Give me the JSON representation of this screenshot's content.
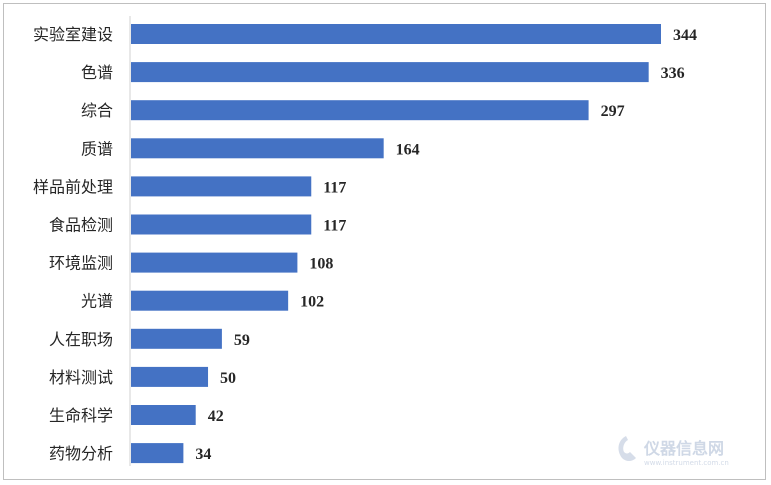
{
  "chart_data": {
    "type": "bar",
    "orientation": "horizontal",
    "categories": [
      "实验室建设",
      "色谱",
      "综合",
      "质谱",
      "样品前处理",
      "食品检测",
      "环境监测",
      "光谱",
      "人在职场",
      "材料测试",
      "生命科学",
      "药物分析"
    ],
    "values": [
      344,
      336,
      297,
      164,
      117,
      117,
      108,
      102,
      59,
      50,
      42,
      34
    ],
    "data_labels": [
      "344",
      "336",
      "297",
      "164",
      "117",
      "117",
      "108",
      "102",
      "59",
      "50",
      "42",
      "34"
    ],
    "bar_color": "#4472c4",
    "xlim": [
      0,
      360
    ],
    "grid": false,
    "legend": "none"
  },
  "watermark": {
    "text": "仪器信息网",
    "url": "www.instrument.com.cn"
  }
}
